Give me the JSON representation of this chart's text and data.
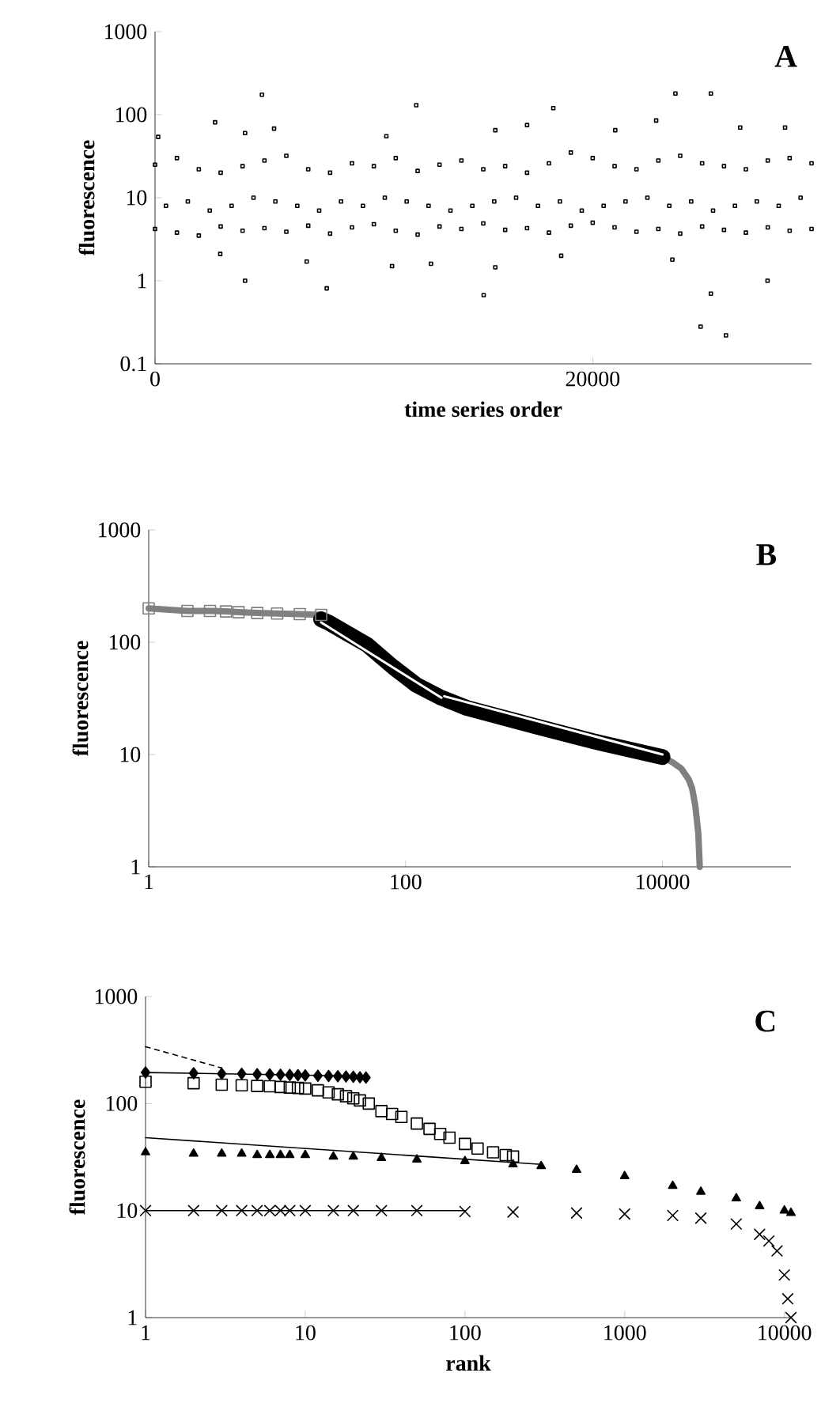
{
  "chart_data": [
    {
      "type": "scatter",
      "xlabel": "time series order",
      "ylabel": "fluorescence",
      "annotations": [
        "A"
      ],
      "log": "y",
      "xlim": [
        0,
        30000
      ],
      "ylim": [
        0.1,
        1000
      ],
      "xticks": [
        0,
        20000
      ],
      "yticks": [
        0.1,
        1,
        10,
        100,
        1000
      ],
      "series": [
        {
          "color": "#000000",
          "marker": "square",
          "x": [
            0,
            1000,
            2000,
            3000,
            4000,
            5000,
            6000,
            7000,
            8000,
            9000,
            10000,
            11000,
            12000,
            13000,
            14000,
            15000,
            16000,
            17000,
            18000,
            19000,
            20000,
            21000,
            22000,
            23000,
            24000,
            25000,
            26000,
            27000,
            28000,
            29000,
            30000,
            0,
            1000,
            2000,
            3000,
            4000,
            5000,
            6000,
            7000,
            8000,
            9000,
            10000,
            11000,
            12000,
            13000,
            14000,
            15000,
            16000,
            17000,
            18000,
            19000,
            20000,
            21000,
            22000,
            23000,
            24000,
            25000,
            26000,
            27000,
            28000,
            29000,
            30000,
            500,
            1500,
            2500,
            3500,
            4500,
            5500,
            6500,
            7500,
            8500,
            9500,
            10500,
            11500,
            12500,
            13500,
            14500,
            15500,
            16500,
            17500,
            18500,
            19500,
            20500,
            21500,
            22500,
            23500,
            24500,
            25500,
            26500,
            27500,
            28500,
            29500,
            4115,
            7846,
            4885,
            11937,
            15018,
            18200,
            23780,
            25400,
            24930,
            26090,
            25400,
            27990,
            10830,
            15550,
            2980,
            6930,
            23640,
            18560,
            12610,
            144,
            2744,
            5440,
            15550,
            17000,
            22900,
            26740,
            28790,
            10570,
            4115,
            21030
          ],
          "values": [
            4.2,
            3.8,
            3.5,
            4.5,
            4,
            4.3,
            3.9,
            4.6,
            3.7,
            4.4,
            4.8,
            4,
            3.6,
            4.5,
            4.2,
            4.9,
            4.1,
            4.3,
            3.8,
            4.6,
            5,
            4.4,
            3.9,
            4.2,
            3.7,
            4.5,
            4.1,
            3.8,
            4.4,
            4,
            4.2,
            25,
            30,
            22,
            20,
            24,
            28,
            32,
            22,
            20,
            26,
            24,
            30,
            21,
            25,
            28,
            22,
            24,
            20,
            26,
            35,
            30,
            24,
            22,
            28,
            32,
            26,
            24,
            22,
            28,
            30,
            26,
            8,
            9,
            7,
            8,
            10,
            9,
            8,
            7,
            9,
            8,
            10,
            9,
            8,
            7,
            8,
            9,
            10,
            8,
            9,
            7,
            8,
            9,
            10,
            8,
            9,
            7,
            8,
            9,
            8,
            10,
            1,
            0.81,
            174,
            130,
            0.67,
            120,
            180,
            180,
            0.28,
            0.22,
            0.7,
            1,
            1.5,
            1.45,
            2.1,
            1.7,
            1.8,
            2,
            1.6,
            54,
            81,
            68,
            65,
            75,
            85,
            70,
            70,
            55,
            60,
            65
          ]
        }
      ]
    },
    {
      "type": "line",
      "ylabel": "fluorescence",
      "annotations": [
        "B"
      ],
      "log": "xy",
      "xlim": [
        1,
        100000
      ],
      "ylim": [
        1,
        1000
      ],
      "xticks": [
        1,
        100,
        10000
      ],
      "yticks": [
        1,
        10,
        100,
        1000
      ],
      "series": [
        {
          "color": "#808080",
          "marker": "square",
          "line_style": "solid",
          "x": [
            1,
            2,
            3,
            4,
            5,
            7,
            10,
            15,
            22
          ],
          "values": [
            200,
            190,
            190,
            188,
            185,
            182,
            180,
            178,
            175
          ]
        },
        {
          "color": "#808080",
          "marker": "none",
          "line_style": "solid",
          "x": [
            10000,
            12000,
            14000,
            16000,
            17000,
            18000,
            19000,
            19500
          ],
          "values": [
            9.5,
            8.5,
            7.5,
            6,
            5,
            3.5,
            2,
            1
          ]
        },
        {
          "color": "#000000",
          "marker": "none",
          "line_style": "solid",
          "x": [
            22,
            25,
            35,
            50,
            80,
            120,
            190,
            300,
            1000,
            3000,
            10000
          ],
          "values": [
            160,
            150,
            120,
            95,
            60,
            42,
            32,
            26,
            18,
            13,
            9.5
          ]
        },
        {
          "color": "#ffffff",
          "marker": "none",
          "line_style": "solid",
          "x": [
            22,
            190,
            195,
            200,
            10000
          ],
          "values": [
            150,
            32,
            null,
            33,
            10
          ]
        }
      ]
    },
    {
      "type": "scatter",
      "xlabel": "rank",
      "ylabel": "fluorescence",
      "annotations": [
        "C"
      ],
      "log": "xy",
      "xlim": [
        1,
        11000
      ],
      "ylim": [
        1,
        1000
      ],
      "xticks": [
        1,
        10,
        100,
        1000,
        10000
      ],
      "yticks": [
        1,
        10,
        100,
        1000
      ],
      "series": [
        {
          "color": "#000000",
          "marker": "diamond",
          "x": [
            1,
            2,
            3,
            4,
            5,
            6,
            7,
            8,
            9,
            10,
            12,
            14,
            16,
            18,
            20,
            22,
            24
          ],
          "values": [
            195,
            192,
            190,
            190,
            188,
            187,
            186,
            185,
            184,
            183,
            182,
            181,
            180,
            179,
            178,
            176,
            175
          ]
        },
        {
          "color": "#000000",
          "marker": "square",
          "x": [
            1,
            2,
            3,
            4,
            5,
            6,
            7,
            8,
            9,
            10,
            12,
            14,
            16,
            18,
            20,
            22,
            25,
            30,
            35,
            40,
            50,
            60,
            70,
            80,
            100,
            120,
            150,
            180,
            200
          ],
          "values": [
            160,
            155,
            150,
            148,
            146,
            145,
            143,
            141,
            140,
            138,
            133,
            127,
            122,
            117,
            112,
            107,
            100,
            85,
            80,
            75,
            65,
            58,
            52,
            48,
            42,
            38,
            35,
            33,
            32
          ]
        },
        {
          "color": "#000000",
          "marker": "triangle",
          "x": [
            1,
            2,
            3,
            4,
            5,
            6,
            7,
            8,
            10,
            15,
            20,
            30,
            50,
            100,
            200,
            300,
            500,
            1000,
            2000,
            3000,
            5000,
            7000,
            10000,
            11000
          ],
          "values": [
            35,
            34,
            34,
            34,
            33,
            33,
            33,
            33,
            33,
            32,
            32,
            31,
            30,
            29,
            27,
            26,
            24,
            21,
            17,
            15,
            13,
            11,
            10,
            9.5
          ]
        },
        {
          "color": "#000000",
          "marker": "cross",
          "x": [
            1,
            2,
            3,
            4,
            5,
            6,
            7,
            8,
            10,
            15,
            20,
            30,
            50,
            100,
            200,
            500,
            1000,
            2000,
            3000,
            5000,
            7000,
            8000,
            9000,
            10000,
            10500,
            11000
          ],
          "values": [
            10,
            10,
            10,
            10,
            10,
            10,
            10,
            10,
            10,
            10,
            10,
            10,
            10,
            9.8,
            9.7,
            9.5,
            9.3,
            9,
            8.5,
            7.5,
            6,
            5.2,
            4.2,
            2.5,
            1.5,
            1
          ]
        },
        {
          "type": "line",
          "color": "#000000",
          "marker": "none",
          "line_style": "dashed",
          "x": [
            1,
            3
          ],
          "values": [
            340,
            215
          ]
        },
        {
          "type": "line",
          "color": "#000000",
          "marker": "none",
          "line_style": "solid",
          "x": [
            1,
            24
          ],
          "values": [
            195,
            180
          ]
        },
        {
          "type": "line",
          "color": "#000000",
          "marker": "none",
          "line_style": "solid",
          "x": [
            1,
            300
          ],
          "values": [
            48,
            27
          ]
        },
        {
          "type": "line",
          "color": "#000000",
          "marker": "none",
          "line_style": "solid",
          "x": [
            1,
            100
          ],
          "values": [
            10,
            10
          ]
        }
      ]
    }
  ]
}
